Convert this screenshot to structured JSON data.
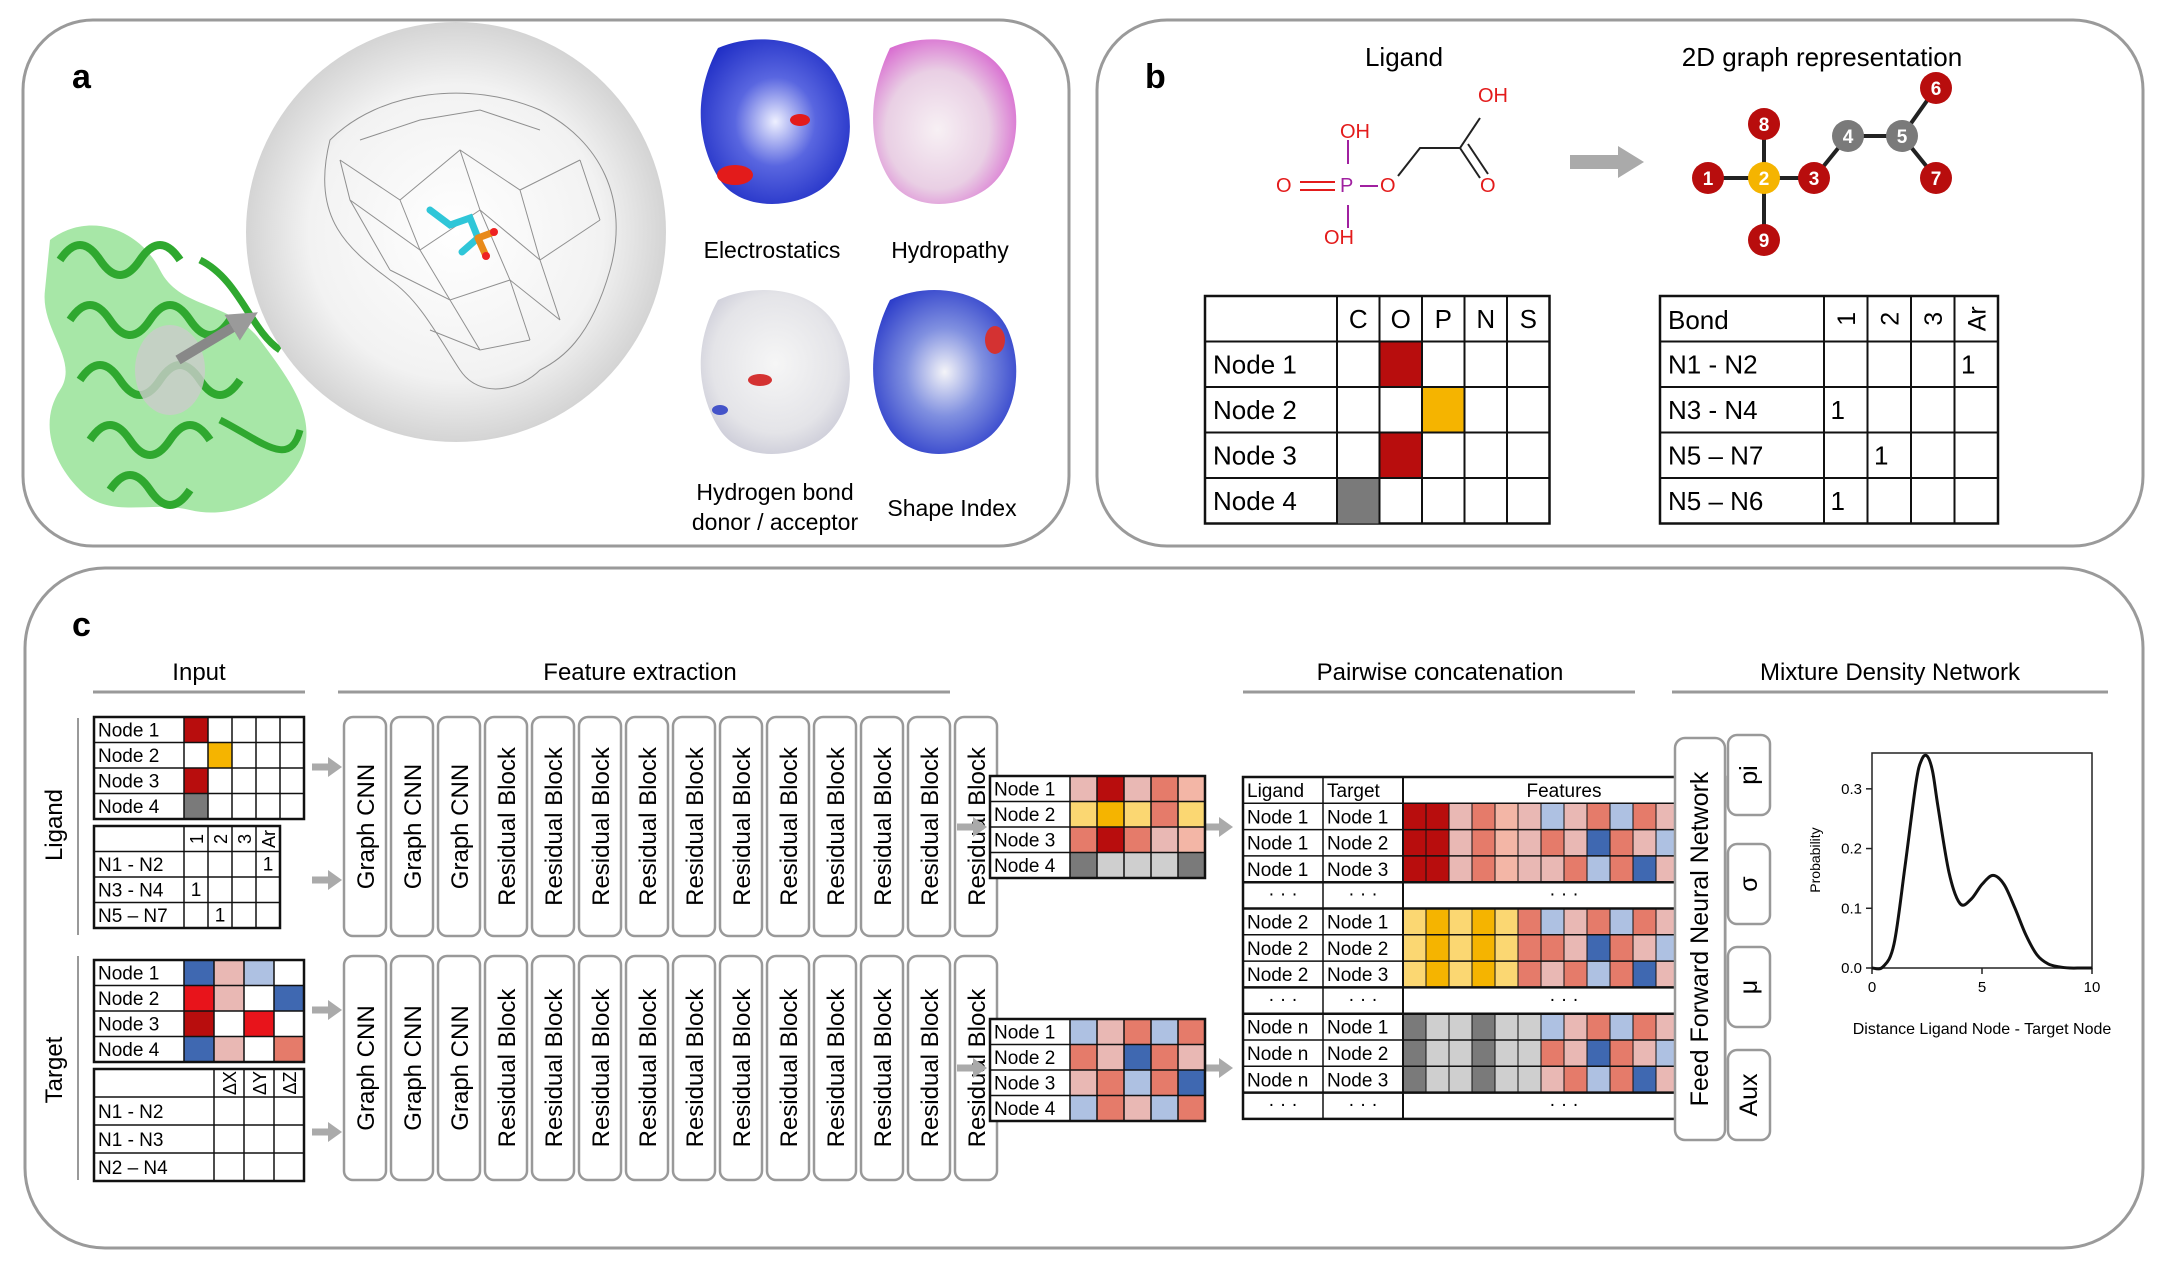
{
  "colors": {
    "red": "#b80d0d",
    "yellow": "#f5b400",
    "gray": "#7a7a7a",
    "panel_border": "#9a9a9a",
    "arrow": "#aaaaaa",
    "bright_red": "#e8141b",
    "pink": "#e9b8b4",
    "light_blue": "#aec1e2",
    "blue": "#3f68b1",
    "coral": "#e57b6a",
    "light_gray": "#cfcfcf",
    "pale_yellow": "#fde8a5",
    "light_yellow": "#fbd772",
    "salmon": "#f3b6a6"
  },
  "panel_a": {
    "label": "a",
    "surfaces": [
      "Electrostatics",
      "Hydropathy",
      "Shape Index"
    ],
    "hbond_line1": "Hydrogen bond",
    "hbond_line2": "donor / acceptor"
  },
  "panel_b": {
    "label": "b",
    "ligand_title": "Ligand",
    "graph_title": "2D graph representation",
    "molecule_atoms": [
      "OH",
      "O",
      "P",
      "O",
      "OH",
      "OH",
      "O"
    ],
    "graph_nodes": [
      "1",
      "2",
      "3",
      "4",
      "5",
      "6",
      "7",
      "8",
      "9"
    ],
    "atom_headers": [
      "C",
      "O",
      "P",
      "N",
      "S"
    ],
    "atom_rows": [
      {
        "label": "Node 1",
        "fill": [
          null,
          "red",
          null,
          null,
          null
        ]
      },
      {
        "label": "Node 2",
        "fill": [
          null,
          null,
          "yellow",
          null,
          null
        ]
      },
      {
        "label": "Node 3",
        "fill": [
          null,
          "red",
          null,
          null,
          null
        ]
      },
      {
        "label": "Node 4",
        "fill": [
          "gray",
          null,
          null,
          null,
          null
        ]
      }
    ],
    "bond_header": "Bond",
    "bond_types": [
      "1",
      "2",
      "3",
      "Ar"
    ],
    "bond_rows": [
      {
        "label": "N1 - N2",
        "values": [
          "",
          "",
          "",
          "1"
        ]
      },
      {
        "label": "N3 - N4",
        "values": [
          "1",
          "",
          "",
          ""
        ]
      },
      {
        "label": "N5 – N7",
        "values": [
          "",
          "1",
          "",
          ""
        ]
      },
      {
        "label": "N5 – N6",
        "values": [
          "1",
          "",
          "",
          ""
        ]
      }
    ]
  },
  "panel_c": {
    "label": "c",
    "sections": [
      "Input",
      "Feature extraction",
      "Pairwise concatenation",
      "Mixture Density Network"
    ],
    "side_labels": [
      "Ligand",
      "Target"
    ],
    "blocks": [
      "Graph CNN",
      "Graph CNN",
      "Graph CNN",
      "Residual Block",
      "Residual Block",
      "Residual Block",
      "Residual Block",
      "Residual Block",
      "Residual Block",
      "Residual Block",
      "Residual Block",
      "Residual Block",
      "Residual Block",
      "Residual Block"
    ],
    "node_labels": [
      "Node 1",
      "Node 2",
      "Node 3",
      "Node 4"
    ],
    "lig_bond_types": [
      "1",
      "2",
      "3",
      "Ar"
    ],
    "lig_bond_rows": [
      {
        "label": "N1 - N2",
        "values": [
          "",
          "",
          "",
          "1"
        ]
      },
      {
        "label": "N3 - N4",
        "values": [
          "1",
          "",
          "",
          ""
        ]
      },
      {
        "label": "N5 – N7",
        "values": [
          "",
          "1",
          "",
          ""
        ]
      }
    ],
    "tgt_bond_types": [
      "ΔX",
      "ΔY",
      "ΔZ"
    ],
    "tgt_bond_rows": [
      "N1 - N2",
      "N1 - N3",
      "N2 – N4"
    ],
    "pair_headers": [
      "Ligand",
      "Target",
      "Features"
    ],
    "pair_rows": [
      [
        "Node 1",
        "Node 1"
      ],
      [
        "Node 1",
        "Node 2"
      ],
      [
        "Node 1",
        "Node 3"
      ],
      [
        "Node 2",
        "Node 1"
      ],
      [
        "Node 2",
        "Node 2"
      ],
      [
        "Node 2",
        "Node 3"
      ],
      [
        "Node n",
        "Node 1"
      ],
      [
        "Node n",
        "Node 2"
      ],
      [
        "Node n",
        "Node 3"
      ]
    ],
    "ellipsis": "· · ·",
    "ffnn": "Feed Forward Neural Network",
    "mdn_outputs": [
      "pi",
      "σ",
      "μ",
      "Aux"
    ]
  },
  "chart_data": {
    "type": "line",
    "xlabel": "Distance Ligand Node - Target Node",
    "ylabel": "Probability",
    "xlim": [
      0,
      10
    ],
    "ylim": [
      0,
      0.36
    ],
    "xticks": [
      0,
      5,
      10
    ],
    "yticks": [
      0.0,
      0.1,
      0.2,
      0.3
    ],
    "x": [
      0,
      0.5,
      1,
      1.5,
      2,
      2.25,
      2.5,
      2.75,
      3,
      3.5,
      4,
      4.5,
      5,
      5.5,
      6,
      6.5,
      7,
      7.5,
      8,
      8.5,
      9,
      9.5,
      10
    ],
    "y": [
      0,
      0.002,
      0.04,
      0.17,
      0.31,
      0.348,
      0.355,
      0.33,
      0.27,
      0.16,
      0.108,
      0.115,
      0.14,
      0.155,
      0.14,
      0.1,
      0.055,
      0.022,
      0.007,
      0.002,
      0,
      0,
      0
    ]
  }
}
